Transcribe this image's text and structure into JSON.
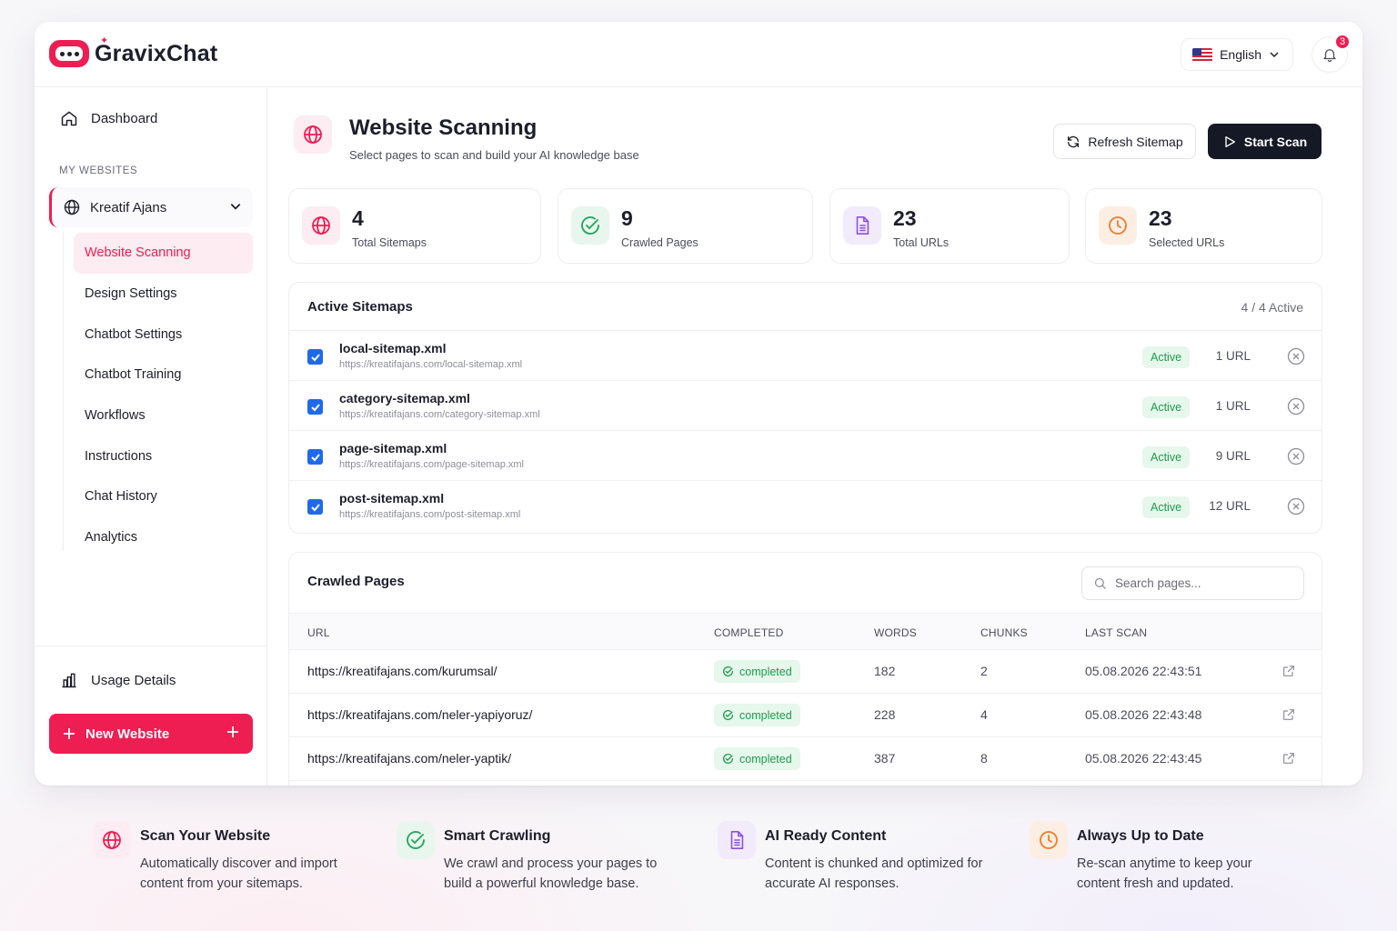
{
  "app": {
    "brand": "GravixChat",
    "language": "English",
    "notifications": "3"
  },
  "sidebar": {
    "dashboard": "Dashboard",
    "section_label": "MY WEBSITES",
    "site": "Kreatif Ajans",
    "items": [
      {
        "label": "Website Scanning"
      },
      {
        "label": "Design Settings"
      },
      {
        "label": "Chatbot Settings"
      },
      {
        "label": "Chatbot Training"
      },
      {
        "label": "Workflows"
      },
      {
        "label": "Instructions"
      },
      {
        "label": "Chat History"
      },
      {
        "label": "Analytics"
      }
    ],
    "usage": "Usage Details",
    "new_website": "New Website"
  },
  "header": {
    "title": "Website Scanning",
    "subtitle": "Select pages to scan and build your AI knowledge base",
    "refresh": "Refresh Sitemap",
    "start": "Start Scan"
  },
  "stats": [
    {
      "value": "4",
      "label": "Total Sitemaps"
    },
    {
      "value": "9",
      "label": "Crawled Pages"
    },
    {
      "value": "23",
      "label": "Total URLs"
    },
    {
      "value": "23",
      "label": "Selected URLs"
    }
  ],
  "sitemaps": {
    "title": "Active Sitemaps",
    "count": "4 / 4 Active",
    "rows": [
      {
        "name": "local-sitemap.xml",
        "url": "https://kreatifajans.com/local-sitemap.xml",
        "status": "Active",
        "urls": "1 URL"
      },
      {
        "name": "category-sitemap.xml",
        "url": "https://kreatifajans.com/category-sitemap.xml",
        "status": "Active",
        "urls": "1 URL"
      },
      {
        "name": "page-sitemap.xml",
        "url": "https://kreatifajans.com/page-sitemap.xml",
        "status": "Active",
        "urls": "9 URL"
      },
      {
        "name": "post-sitemap.xml",
        "url": "https://kreatifajans.com/post-sitemap.xml",
        "status": "Active",
        "urls": "12 URL"
      }
    ]
  },
  "crawled": {
    "title": "Crawled Pages",
    "search_placeholder": "Search pages...",
    "columns": [
      "URL",
      "COMPLETED",
      "WORDS",
      "CHUNKS",
      "LAST SCAN"
    ],
    "rows": [
      {
        "url": "https://kreatifajans.com/kurumsal/",
        "status": "completed",
        "words": "182",
        "chunks": "2",
        "last_scan": "05.08.2026 22:43:51"
      },
      {
        "url": "https://kreatifajans.com/neler-yapiyoruz/",
        "status": "completed",
        "words": "228",
        "chunks": "4",
        "last_scan": "05.08.2026 22:43:48"
      },
      {
        "url": "https://kreatifajans.com/neler-yaptik/",
        "status": "completed",
        "words": "387",
        "chunks": "8",
        "last_scan": "05.08.2026 22:43:45"
      }
    ]
  },
  "features": [
    {
      "title": "Scan Your Website",
      "desc": "Automatically discover and import content from your sitemaps."
    },
    {
      "title": "Smart Crawling",
      "desc": "We crawl and process your pages to build a powerful knowledge base."
    },
    {
      "title": "AI Ready Content",
      "desc": "Content is chunked and optimized for accurate AI responses."
    },
    {
      "title": "Always Up to Date",
      "desc": "Re-scan anytime to keep your content fresh and updated."
    }
  ],
  "colors": {
    "accent": "#ee1d52",
    "dark": "#151925",
    "success": "#1f9b4e",
    "checkbox": "#1f6ae8",
    "purple": "#8b4fe0",
    "orange": "#f07a2a",
    "green": "#27a660"
  }
}
